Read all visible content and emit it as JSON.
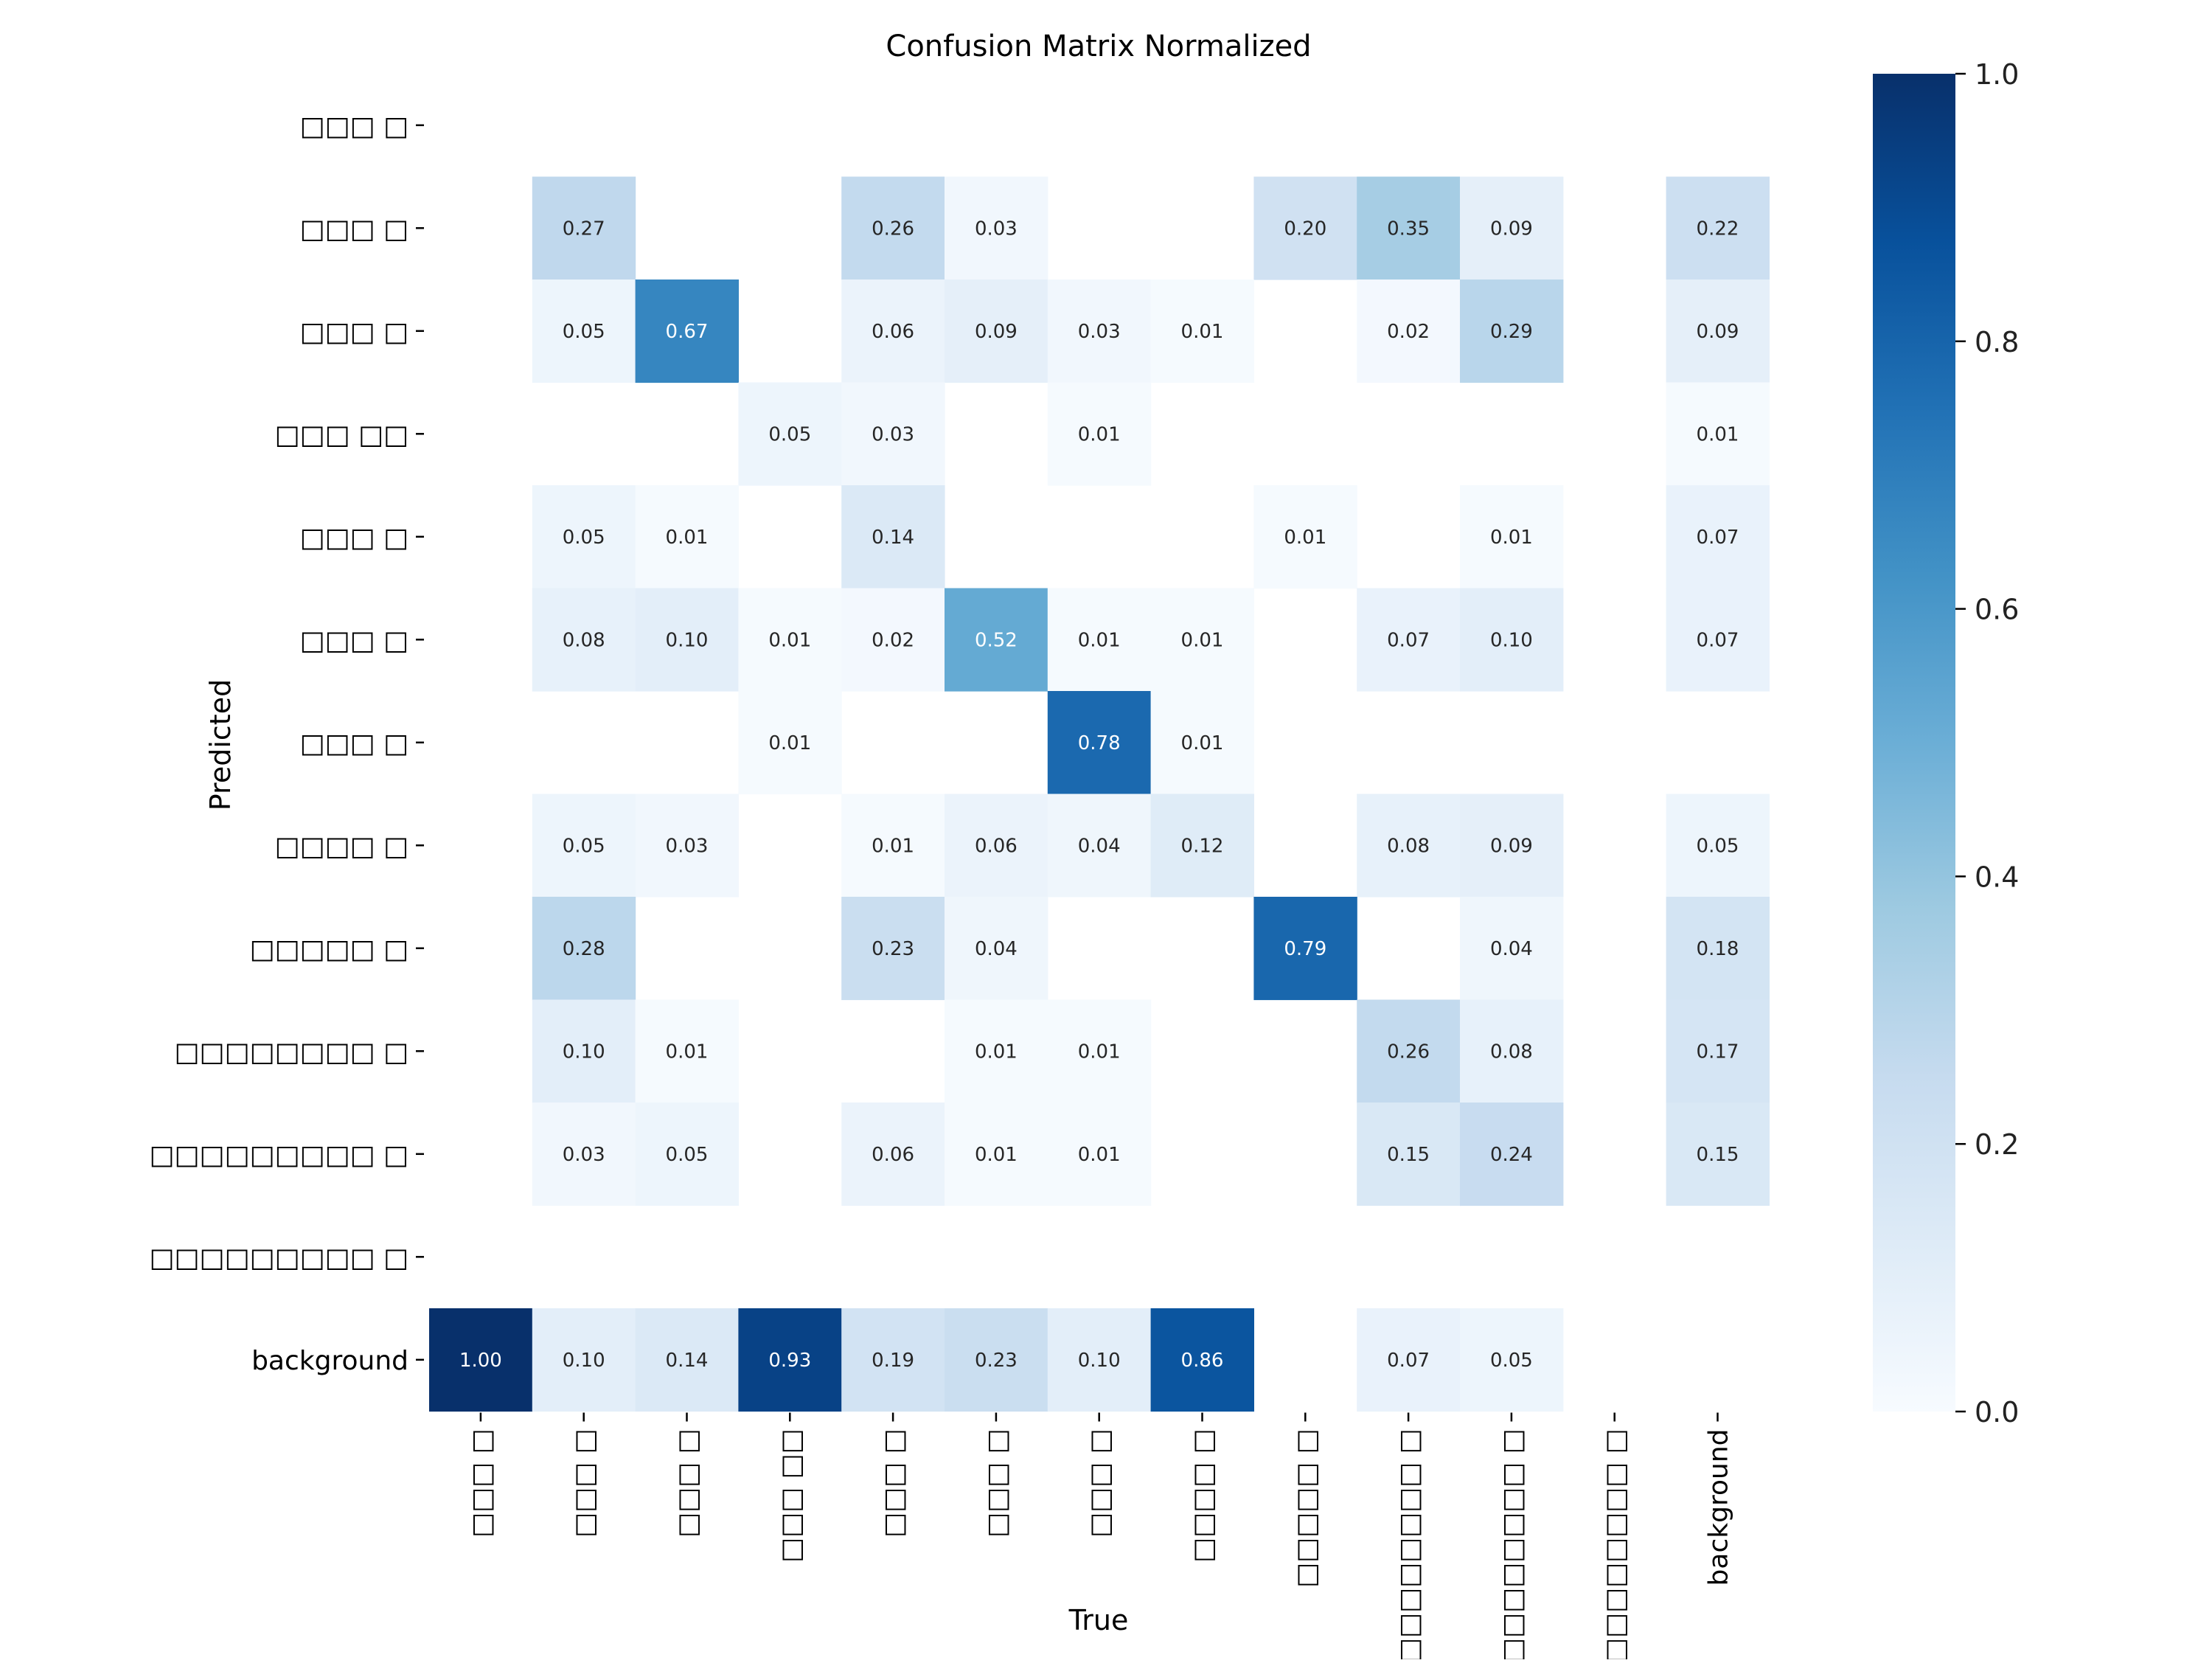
{
  "chart_data": {
    "type": "heatmap",
    "title": "Confusion Matrix Normalized",
    "xlabel": "True",
    "ylabel": "Predicted",
    "x_categories": [
      "□□□ □",
      "□□□ □",
      "□□□ □",
      "□□□ □□",
      "□□□ □",
      "□□□ □",
      "□□□ □",
      "□□□□ □",
      "□□□□□ □",
      "□□□□□□□□ □",
      "□□□□□□□□□ □",
      "□□□□□□□□□ □",
      "background"
    ],
    "y_categories": [
      "□□□ □",
      "□□□ □",
      "□□□ □",
      "□□□ □□",
      "□□□ □",
      "□□□ □",
      "□□□ □",
      "□□□□ □",
      "□□□□□ □",
      "□□□□□□□□ □",
      "□□□□□□□□□ □",
      "□□□□□□□□□ □",
      "background"
    ],
    "values": [
      [
        null,
        null,
        null,
        null,
        null,
        null,
        null,
        null,
        null,
        null,
        null,
        null,
        null
      ],
      [
        null,
        0.27,
        null,
        null,
        0.26,
        0.03,
        null,
        null,
        0.2,
        0.35,
        0.09,
        null,
        0.22
      ],
      [
        null,
        0.05,
        0.67,
        null,
        0.06,
        0.09,
        0.03,
        0.01,
        null,
        0.02,
        0.29,
        null,
        0.09
      ],
      [
        null,
        null,
        null,
        0.05,
        0.03,
        null,
        0.01,
        null,
        null,
        null,
        null,
        null,
        0.01
      ],
      [
        null,
        0.05,
        0.01,
        null,
        0.14,
        null,
        null,
        null,
        0.01,
        null,
        0.01,
        null,
        0.07
      ],
      [
        null,
        0.08,
        0.1,
        0.01,
        0.02,
        0.52,
        0.01,
        0.01,
        null,
        0.07,
        0.1,
        null,
        0.07
      ],
      [
        null,
        null,
        null,
        0.01,
        null,
        null,
        0.78,
        0.01,
        null,
        null,
        null,
        null,
        null
      ],
      [
        null,
        0.05,
        0.03,
        null,
        0.01,
        0.06,
        0.04,
        0.12,
        null,
        0.08,
        0.09,
        null,
        0.05
      ],
      [
        null,
        0.28,
        null,
        null,
        0.23,
        0.04,
        null,
        null,
        0.79,
        null,
        0.04,
        null,
        0.18
      ],
      [
        null,
        0.1,
        0.01,
        null,
        null,
        0.01,
        0.01,
        null,
        null,
        0.26,
        0.08,
        null,
        0.17
      ],
      [
        null,
        0.03,
        0.05,
        null,
        0.06,
        0.01,
        0.01,
        null,
        null,
        0.15,
        0.24,
        null,
        0.15
      ],
      [
        null,
        null,
        null,
        null,
        null,
        null,
        null,
        null,
        null,
        null,
        null,
        null,
        null
      ],
      [
        1.0,
        0.1,
        0.14,
        0.93,
        0.19,
        0.23,
        0.1,
        0.86,
        null,
        0.07,
        0.05,
        null,
        null
      ]
    ],
    "value_format": "0.00",
    "colormap": "Blues",
    "vmin": 0.0,
    "vmax": 1.0,
    "colorbar_ticks": [
      "0.0",
      "0.2",
      "0.4",
      "0.6",
      "0.8",
      "1.0"
    ],
    "colors": {
      "low": "#f7fbff",
      "high": "#08306b",
      "text_dark": "#262626",
      "text_light": "#ffffff"
    }
  }
}
